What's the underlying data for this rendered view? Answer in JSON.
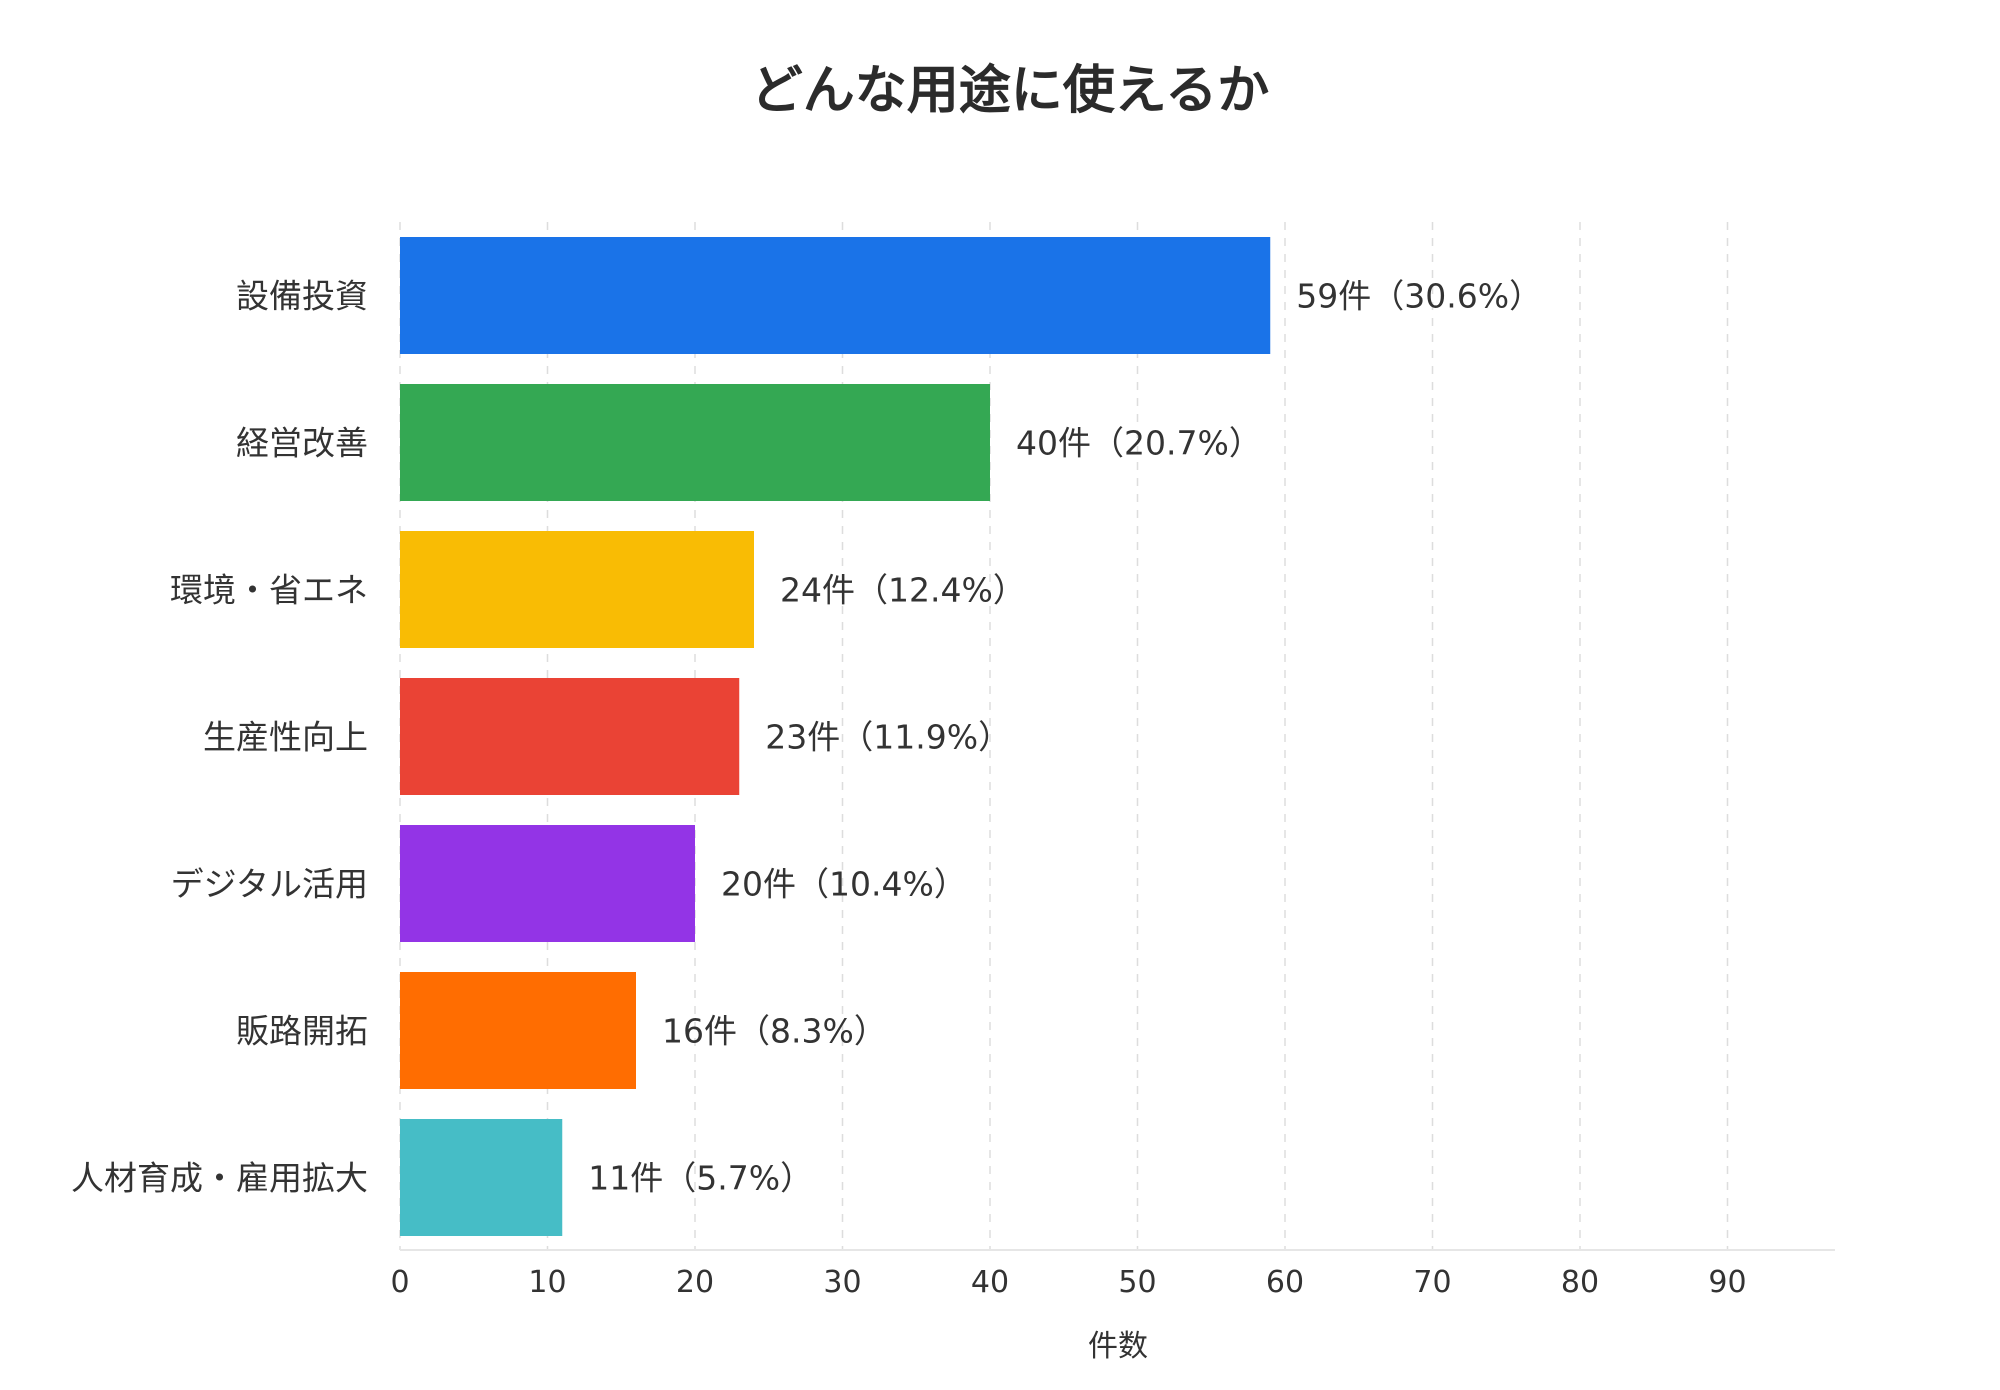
{
  "chart_data": {
    "type": "bar",
    "orientation": "horizontal",
    "title": "どんな用途に使えるか",
    "xlabel": "件数",
    "ylabel": "",
    "xlim": [
      0,
      97
    ],
    "ticks": [
      0,
      10,
      20,
      30,
      40,
      50,
      60,
      70,
      80,
      90
    ],
    "grid": true,
    "categories": [
      "設備投資",
      "経営改善",
      "環境・省エネ",
      "生産性向上",
      "デジタル活用",
      "販路開拓",
      "人材育成・雇用拡大"
    ],
    "values": [
      59,
      40,
      24,
      23,
      20,
      16,
      11
    ],
    "data_labels": [
      "59件（30.6%）",
      "40件（20.7%）",
      "24件（12.4%）",
      "23件（11.9%）",
      "20件（10.4%）",
      "16件（8.3%）",
      "11件（5.7%）"
    ],
    "colors": [
      "#1a73e8",
      "#34a853",
      "#f9bc04",
      "#ea4335",
      "#9334e6",
      "#ff6d01",
      "#46bdc6"
    ]
  }
}
